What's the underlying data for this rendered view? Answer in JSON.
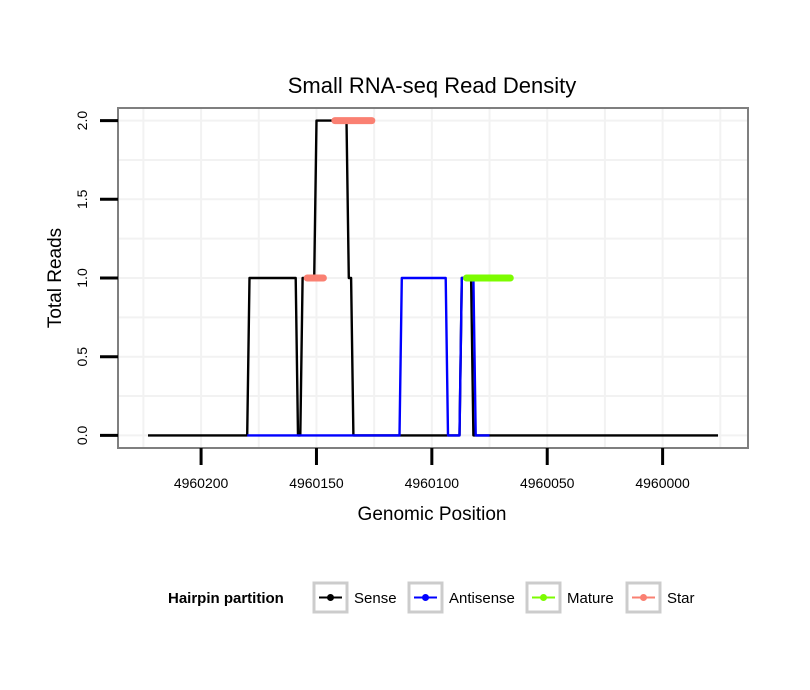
{
  "chart_data": {
    "type": "line",
    "title": "Small RNA-seq Read Density",
    "xlabel": "Genomic Position",
    "ylabel": "Total Reads",
    "x_reversed": true,
    "xlim": [
      4960236,
      4959963
    ],
    "ylim": [
      -0.08,
      2.08
    ],
    "x_ticks": [
      4960200,
      4960150,
      4960100,
      4960050,
      4960000
    ],
    "x_tick_labels": [
      "4960200",
      "4960150",
      "4960100",
      "4960050",
      "4960000"
    ],
    "y_ticks": [
      0,
      0.5,
      1,
      1.5,
      2
    ],
    "y_tick_labels": [
      "0.0",
      "0.5",
      "1.0",
      "1.5",
      "2.0"
    ],
    "grid": true,
    "legend": {
      "title": "Hairpin partition",
      "position": "bottom",
      "entries": [
        {
          "name": "Sense",
          "color": "#000000"
        },
        {
          "name": "Antisense",
          "color": "#0000ff"
        },
        {
          "name": "Mature",
          "color": "#7cfc00"
        },
        {
          "name": "Star",
          "color": "#fa8072"
        }
      ]
    },
    "series": [
      {
        "name": "Sense",
        "color": "#000000",
        "x": [
          4960223,
          4960180,
          4960179,
          4960159,
          4960158,
          4960157,
          4960156,
          4960151,
          4960150,
          4960142,
          4960141,
          4960137,
          4960136,
          4960135,
          4960134,
          4960118,
          4960117,
          4960110,
          4960109,
          4960108,
          4960107,
          4960106,
          4960105,
          4960104,
          4960103,
          4960088,
          4960087,
          4960083,
          4960082,
          4959976
        ],
        "y": [
          0,
          0,
          1,
          1,
          0,
          0,
          1,
          1,
          2,
          2,
          2,
          2,
          1,
          1,
          0,
          0,
          0,
          0,
          0,
          0,
          0,
          0,
          0,
          0,
          0,
          0,
          1,
          1,
          0,
          0
        ]
      },
      {
        "name": "Antisense",
        "color": "#0000ff",
        "x": [
          4960180,
          4960134,
          4960133,
          4960114,
          4960113,
          4960094,
          4960093,
          4960088,
          4960087,
          4960082,
          4960081,
          4960075
        ],
        "y": [
          0,
          0,
          0,
          0,
          1,
          1,
          0,
          0,
          1,
          1,
          0,
          0
        ]
      },
      {
        "name": "Mature",
        "color": "#7cfc00",
        "x": [
          4960085,
          4960066
        ],
        "y": [
          1,
          1
        ]
      },
      {
        "name": "Star",
        "color": "#fa8072",
        "x": [
          4960154,
          4960147,
          4960142,
          4960126
        ],
        "y": [
          1,
          1,
          2,
          2
        ],
        "segments": [
          [
            0,
            1
          ],
          [
            2,
            3
          ]
        ]
      }
    ]
  }
}
